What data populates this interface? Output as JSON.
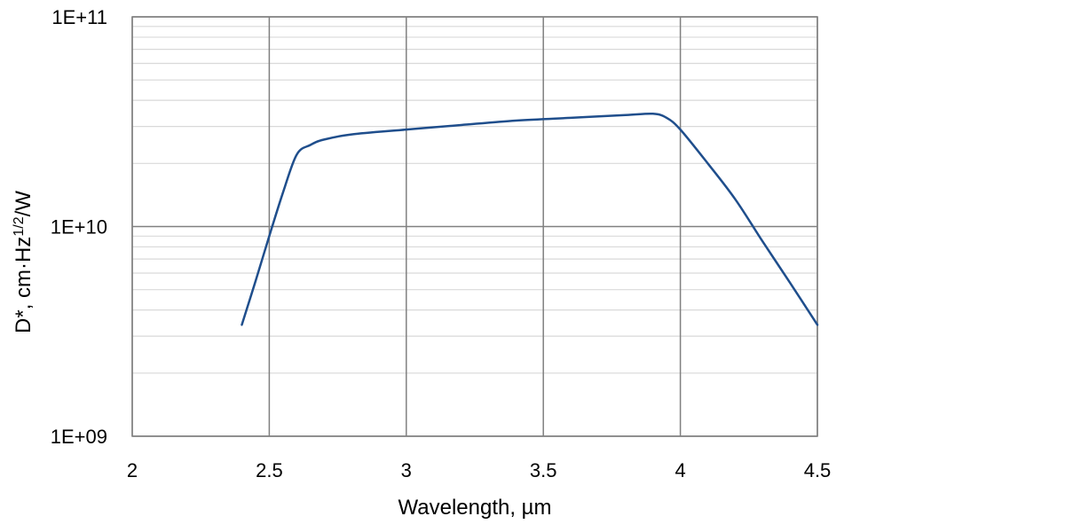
{
  "chart_data": {
    "type": "line",
    "xlabel": "Wavelength, µm",
    "ylabel": {
      "prefix": "D*, cm·Hz",
      "superscript": "1/2",
      "suffix": "/W"
    },
    "xlim": [
      2,
      4.5
    ],
    "ylim": [
      1000000000.0,
      100000000000.0
    ],
    "y_scale": "log",
    "grid": true,
    "x_ticks": [
      2,
      2.5,
      3,
      3.5,
      4,
      4.5
    ],
    "x_tick_labels": [
      "2",
      "2.5",
      "3",
      "3.5",
      "4",
      "4.5"
    ],
    "y_ticks": [
      1000000000.0,
      10000000000.0,
      100000000000.0
    ],
    "y_tick_labels": [
      "1E+09",
      "1E+10",
      "1E+11"
    ],
    "series": [
      {
        "color": "#1f4e8c",
        "x": [
          2.4,
          2.45,
          2.5,
          2.55,
          2.6,
          2.65,
          2.7,
          2.8,
          3.0,
          3.2,
          3.4,
          3.6,
          3.8,
          3.9,
          3.95,
          4.0,
          4.1,
          4.2,
          4.3,
          4.4,
          4.5
        ],
        "y": [
          3400000000.0,
          5500000000.0,
          9000000000.0,
          14500000000.0,
          22000000000.0,
          24500000000.0,
          26000000000.0,
          27500000000.0,
          29000000000.0,
          30500000000.0,
          32000000000.0,
          33000000000.0,
          34000000000.0,
          34500000000.0,
          33000000000.0,
          29000000000.0,
          20000000000.0,
          13500000000.0,
          8500000000.0,
          5400000000.0,
          3400000000.0
        ]
      }
    ]
  }
}
